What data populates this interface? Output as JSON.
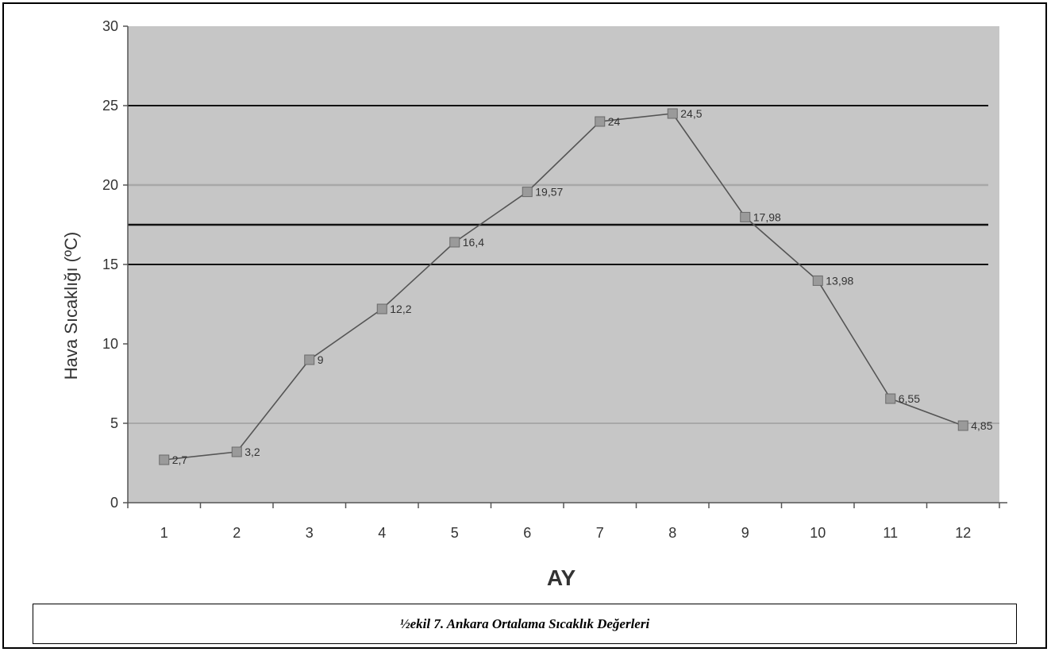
{
  "chart_data": {
    "type": "line",
    "title": "",
    "xlabel": "AY",
    "ylabel": "Hava Sıcaklığı (ºC)",
    "categories": [
      "1",
      "2",
      "3",
      "4",
      "5",
      "6",
      "7",
      "8",
      "9",
      "10",
      "11",
      "12"
    ],
    "series": [
      {
        "values": [
          2.7,
          3.2,
          9,
          12.2,
          16.4,
          19.57,
          24,
          24.5,
          17.98,
          13.98,
          6.55,
          4.85
        ],
        "labels": [
          "2,7",
          "3,2",
          "9",
          "12,2",
          "16,4",
          "19,57",
          "24",
          "24,5",
          "17,98",
          "13,98",
          "6,55",
          "4,85"
        ]
      }
    ],
    "ylim": [
      0,
      30
    ],
    "yticks": [
      "0",
      "5",
      "10",
      "15",
      "20",
      "25",
      "30"
    ],
    "reference_lines": [
      25,
      20,
      17.5,
      15
    ],
    "grid": false,
    "legend": "none",
    "colors": {
      "plot_background": "#c6c6c6",
      "line": "#555555",
      "marker": "#9a9a9a",
      "reference_line_dark": "#111111",
      "reference_line_light": "#a8a8a8"
    }
  },
  "caption": "½ekil 7. Ankara Ortalama Sıcaklık Değerleri"
}
